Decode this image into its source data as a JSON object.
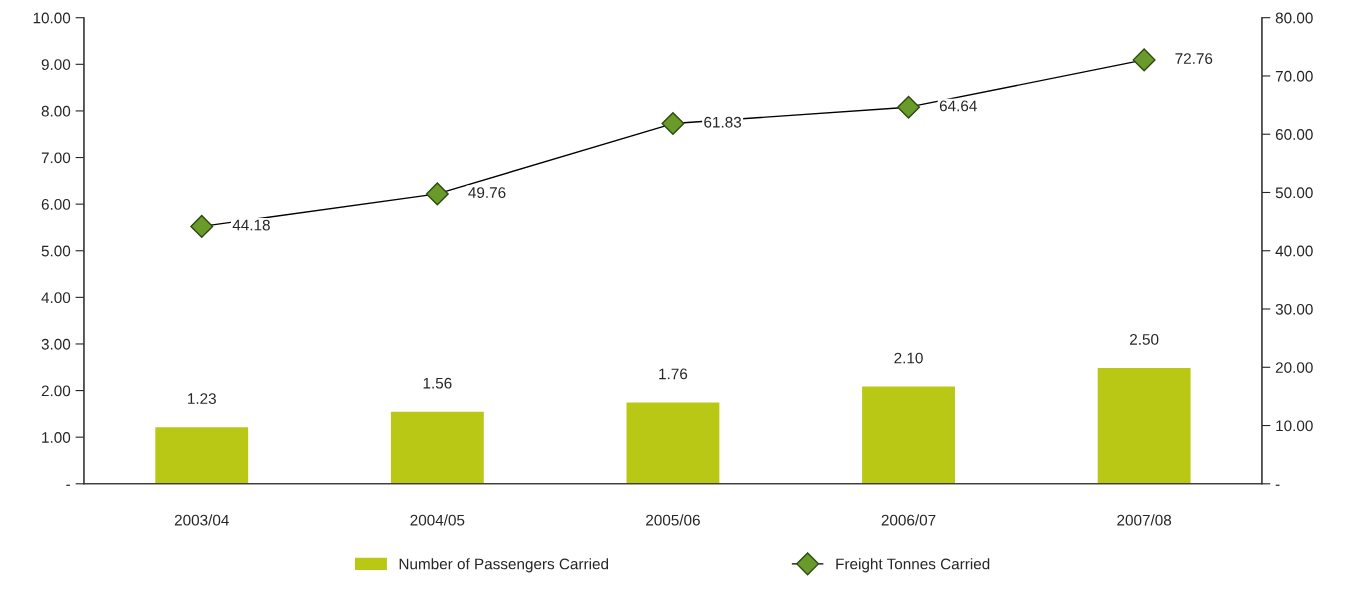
{
  "chart_data": {
    "type": "bar",
    "categories": [
      "2003/04",
      "2004/05",
      "2005/06",
      "2006/07",
      "2007/08"
    ],
    "series": [
      {
        "name": "Number of Passengers Carried",
        "color": "#b8c814",
        "values": [
          1.23,
          1.56,
          1.76,
          2.1,
          2.5
        ],
        "value_labels": [
          "1.23",
          "1.56",
          "1.76",
          "2.10",
          "2.50"
        ]
      },
      {
        "name": "Freight Tonnes Carried",
        "type": "line",
        "axis": "y2",
        "color": "#000000",
        "marker": "diamond",
        "values": [
          44.18,
          49.76,
          61.83,
          64.64,
          72.76
        ],
        "value_labels": [
          "44.18",
          "49.76",
          "61.83",
          "64.64",
          "72.76"
        ]
      }
    ],
    "ylim": [
      0,
      10
    ],
    "yticks": [
      {
        "value": 0,
        "label": "-"
      },
      {
        "value": 1,
        "label": "1.00"
      },
      {
        "value": 2,
        "label": "2.00"
      },
      {
        "value": 3,
        "label": "3.00"
      },
      {
        "value": 4,
        "label": "4.00"
      },
      {
        "value": 5,
        "label": "5.00"
      },
      {
        "value": 6,
        "label": "6.00"
      },
      {
        "value": 7,
        "label": "7.00"
      },
      {
        "value": 8,
        "label": "8.00"
      },
      {
        "value": 9,
        "label": "9.00"
      },
      {
        "value": 10,
        "label": "10.00"
      }
    ],
    "y2lim": [
      0,
      80
    ],
    "y2ticks": [
      {
        "value": 0,
        "label": "-"
      },
      {
        "value": 10,
        "label": "10.00"
      },
      {
        "value": 20,
        "label": "20.00"
      },
      {
        "value": 30,
        "label": "30.00"
      },
      {
        "value": 40,
        "label": "40.00"
      },
      {
        "value": 50,
        "label": "50.00"
      },
      {
        "value": 60,
        "label": "60.00"
      },
      {
        "value": 70,
        "label": "70.00"
      },
      {
        "value": 80,
        "label": "80.00"
      }
    ],
    "grid": false,
    "legend": "bottom"
  }
}
